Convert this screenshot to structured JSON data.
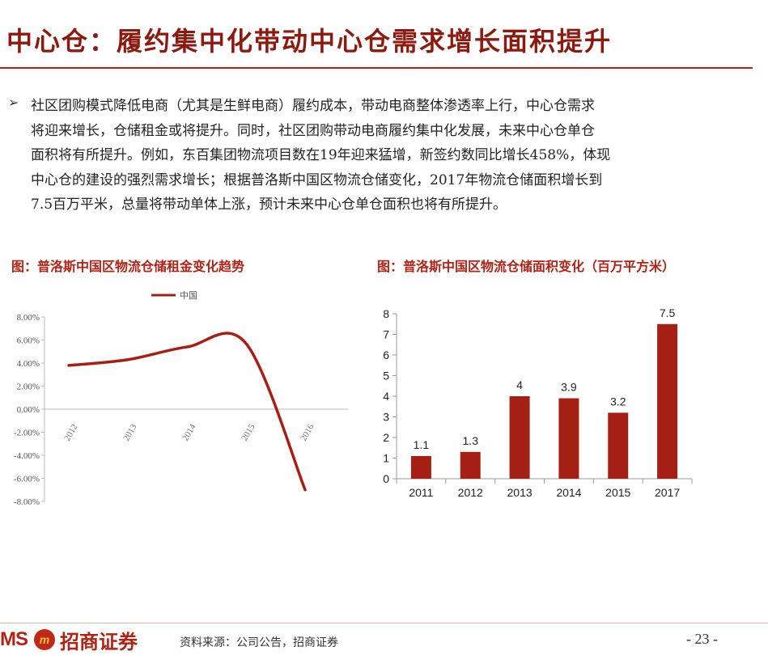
{
  "header": {
    "title": "中心仓：履约集中化带动中心仓需求增长面积提升"
  },
  "body": {
    "bullet_icon": "arrow-bullet-icon",
    "bullet_glyph": "➢",
    "lines": [
      "社区团购模式降低电商（尤其是生鲜电商）履约成本，带动电商整体渗透率上行，中心仓需求",
      "将迎来增长，仓储租金或将提升。同时，社区团购带动电商履约集中化发展，未来中心仓单仓",
      "面积将有所提升。例如，东百集团物流项目数在19年迎来猛增，新签约数同比增长458%，体现",
      "中心仓的建设的强烈需求增长；根据普洛斯中国区物流仓储变化，2017年物流仓储面积增长到",
      "7.5百万平米，总量将带动单体上涨，预计未来中心仓单仓面积也将有所提升。"
    ]
  },
  "figures": {
    "left_title": "图：普洛斯中国区物流仓储租金变化趋势",
    "right_title": "图：普洛斯中国区物流仓储面积变化（百万平方米）"
  },
  "chart_data": [
    {
      "type": "line",
      "title": "",
      "legend": [
        "中国"
      ],
      "legend_position": "top-center",
      "color": "#a52014",
      "x": [
        "2012",
        "2013",
        "2014",
        "2015",
        "2016"
      ],
      "series": [
        {
          "name": "中国",
          "values": [
            3.8,
            4.3,
            5.4,
            5.7,
            -7.0
          ]
        }
      ],
      "ylim": [
        -8,
        8
      ],
      "yticks": [
        "8.00%",
        "6.00%",
        "4.00%",
        "2.00%",
        "0.00%",
        "-2.00%",
        "-4.00%",
        "-6.00%",
        "-8.00%"
      ],
      "grid": false
    },
    {
      "type": "bar",
      "title": "",
      "color": "#a52014",
      "categories": [
        "2011",
        "2012",
        "2013",
        "2014",
        "2015",
        "2017"
      ],
      "values": [
        1.1,
        1.3,
        4,
        3.9,
        3.2,
        7.5
      ],
      "data_labels": [
        "1.1",
        "1.3",
        "4",
        "3.9",
        "3.2",
        "7.5"
      ],
      "ylim": [
        0,
        8
      ],
      "yticks": [
        "8",
        "7",
        "6",
        "5",
        "4",
        "3",
        "2",
        "1",
        "0"
      ],
      "grid": false
    }
  ],
  "footer": {
    "logo_text": "MS",
    "logo_mark": "m",
    "logo_cn": "招商证券",
    "source": "资料来源：公司公告，招商证券",
    "page": "- 23 -"
  }
}
